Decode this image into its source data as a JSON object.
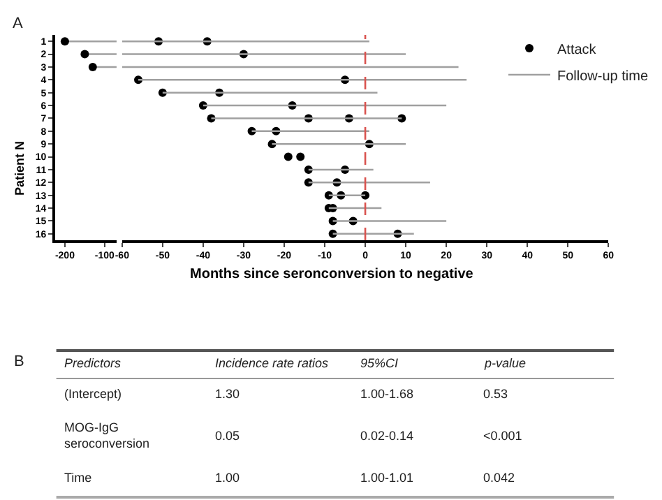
{
  "chart_data": [
    {
      "type": "scatter",
      "annotations": [
        "A"
      ],
      "ylabel": "Patient N",
      "xlim": [
        -225,
        -70
      ],
      "xticks": [
        -200,
        -100
      ],
      "ylim": [
        16.5,
        0.5
      ],
      "yticks": [
        1,
        2,
        3,
        4,
        5,
        6,
        7,
        8,
        9,
        10,
        11,
        12,
        13,
        14,
        15,
        16
      ],
      "legend": false,
      "series": [
        {
          "type": "line",
          "color": "#a0a0a0",
          "x": [
            -200,
            -70
          ],
          "values": [
            1,
            1
          ]
        },
        {
          "type": "line",
          "color": "#a0a0a0",
          "x": [
            -150,
            -70
          ],
          "values": [
            2,
            2
          ]
        },
        {
          "type": "line",
          "color": "#a0a0a0",
          "x": [
            -130,
            -70
          ],
          "values": [
            3,
            3
          ]
        },
        {
          "type": "scatter",
          "marker": "circle",
          "color": "#000000",
          "x": [
            -200,
            -150,
            -130
          ],
          "values": [
            1,
            2,
            3
          ]
        }
      ]
    },
    {
      "type": "scatter",
      "xlabel": "Months since seronconversion to negative",
      "xlim": [
        -60,
        60
      ],
      "xticks": [
        -60,
        -50,
        -40,
        -30,
        -20,
        -10,
        0,
        10,
        20,
        30,
        40,
        50,
        60
      ],
      "ylim": [
        16.5,
        0.5
      ],
      "yticks": [
        1,
        2,
        3,
        4,
        5,
        6,
        7,
        8,
        9,
        10,
        11,
        12,
        13,
        14,
        15,
        16
      ],
      "tick_labels": "x",
      "legend": "top right",
      "ref_lines": [
        {
          "axis": "x",
          "value": 0,
          "color": "#d9534f",
          "line_style": "dashed"
        }
      ],
      "series": [
        {
          "name": "Attack",
          "type": "scatter",
          "marker": "circle",
          "color": "#000000",
          "x": [
            -51,
            -39,
            -30,
            -56,
            -5,
            -50,
            -36,
            -40,
            -18,
            -38,
            -14,
            -4,
            9,
            -28,
            -22,
            -23,
            1,
            -19,
            -16,
            -14,
            -5,
            -14,
            -7,
            -9,
            -6,
            0,
            -9,
            -8,
            -8,
            -3,
            -8,
            8
          ],
          "values": [
            1,
            1,
            2,
            4,
            4,
            5,
            5,
            6,
            6,
            7,
            7,
            7,
            7,
            8,
            8,
            9,
            9,
            10,
            10,
            11,
            11,
            12,
            12,
            13,
            13,
            13,
            14,
            14,
            15,
            15,
            16,
            16
          ]
        },
        {
          "name": "Follow-up time",
          "type": "line",
          "color": "#a0a0a0",
          "x": [
            -60,
            1,
            null,
            -60,
            10,
            null,
            -60,
            23,
            null,
            -56,
            25,
            null,
            -50,
            3,
            null,
            -40,
            20,
            null,
            -38,
            9,
            null,
            -28,
            1,
            null,
            -23,
            10,
            null,
            -14,
            2,
            null,
            -14,
            16,
            null,
            -9,
            0,
            null,
            -9,
            4,
            null,
            -8,
            20,
            null,
            -8,
            12
          ],
          "values": [
            1,
            1,
            null,
            2,
            2,
            null,
            3,
            3,
            null,
            4,
            4,
            null,
            5,
            5,
            null,
            6,
            6,
            null,
            7,
            7,
            null,
            8,
            8,
            null,
            9,
            9,
            null,
            11,
            11,
            null,
            12,
            12,
            null,
            13,
            13,
            null,
            14,
            14,
            null,
            15,
            15,
            null,
            16,
            16
          ]
        }
      ]
    },
    {
      "type": "other",
      "annotations": [
        "B"
      ],
      "categories": [
        "Predictors",
        "Incidence rate ratios",
        "95%CI",
        "p-value"
      ],
      "cell_labels": [
        [
          "(Intercept)",
          "1.30",
          "1.00-1.68",
          "0.53"
        ],
        [
          "MOG-IgG seroconversion",
          "0.05",
          "0.02-0.14",
          "<0.001"
        ],
        [
          "Time",
          "1.00",
          "1.00-1.01",
          "0.042"
        ]
      ]
    }
  ]
}
